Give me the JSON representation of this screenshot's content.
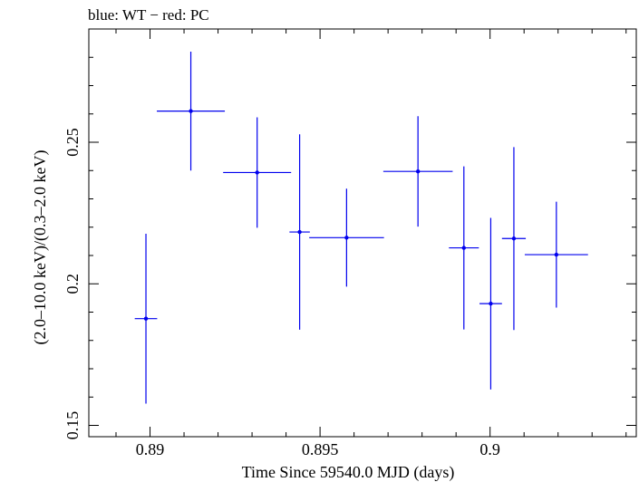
{
  "chart_data": {
    "type": "scatter",
    "title": "blue: WT − red: PC",
    "xlabel": "Time Since 59540.0 MJD (days)",
    "ylabel": "(2.0–10.0 keV)/(0.3–2.0 keV)",
    "xlim": [
      0.8882,
      0.9043
    ],
    "ylim": [
      0.146,
      0.29
    ],
    "x_ticks": [
      {
        "value": 0.89,
        "label": "0.89"
      },
      {
        "value": 0.895,
        "label": "0.895"
      },
      {
        "value": 0.9,
        "label": "0.9"
      }
    ],
    "x_minor_step": 0.001,
    "y_ticks": [
      {
        "value": 0.15,
        "label": "0.15"
      },
      {
        "value": 0.2,
        "label": "0.2"
      },
      {
        "value": 0.25,
        "label": "0.25"
      }
    ],
    "y_minor_step": 0.01,
    "series": [
      {
        "name": "WT",
        "color": "#0000ee",
        "points": [
          {
            "x": 0.88988,
            "xerr": 0.00033,
            "y": 0.1877,
            "yerr": 0.03
          },
          {
            "x": 0.8912,
            "xerr": 0.001,
            "y": 0.261,
            "yerr": 0.021
          },
          {
            "x": 0.89315,
            "xerr": 0.001,
            "y": 0.2393,
            "yerr": 0.0195
          },
          {
            "x": 0.8944,
            "xerr": 0.0003,
            "y": 0.2183,
            "yerr": 0.0345
          },
          {
            "x": 0.89578,
            "xerr": 0.0011,
            "y": 0.2163,
            "yerr": 0.0173
          },
          {
            "x": 0.89788,
            "xerr": 0.00102,
            "y": 0.2397,
            "yerr": 0.0195
          },
          {
            "x": 0.89923,
            "xerr": 0.00044,
            "y": 0.2127,
            "yerr": 0.0288
          },
          {
            "x": 0.90002,
            "xerr": 0.00033,
            "y": 0.193,
            "yerr": 0.0303
          },
          {
            "x": 0.9007,
            "xerr": 0.00035,
            "y": 0.216,
            "yerr": 0.0323
          },
          {
            "x": 0.90195,
            "xerr": 0.00093,
            "y": 0.2103,
            "yerr": 0.0187
          }
        ]
      }
    ]
  }
}
